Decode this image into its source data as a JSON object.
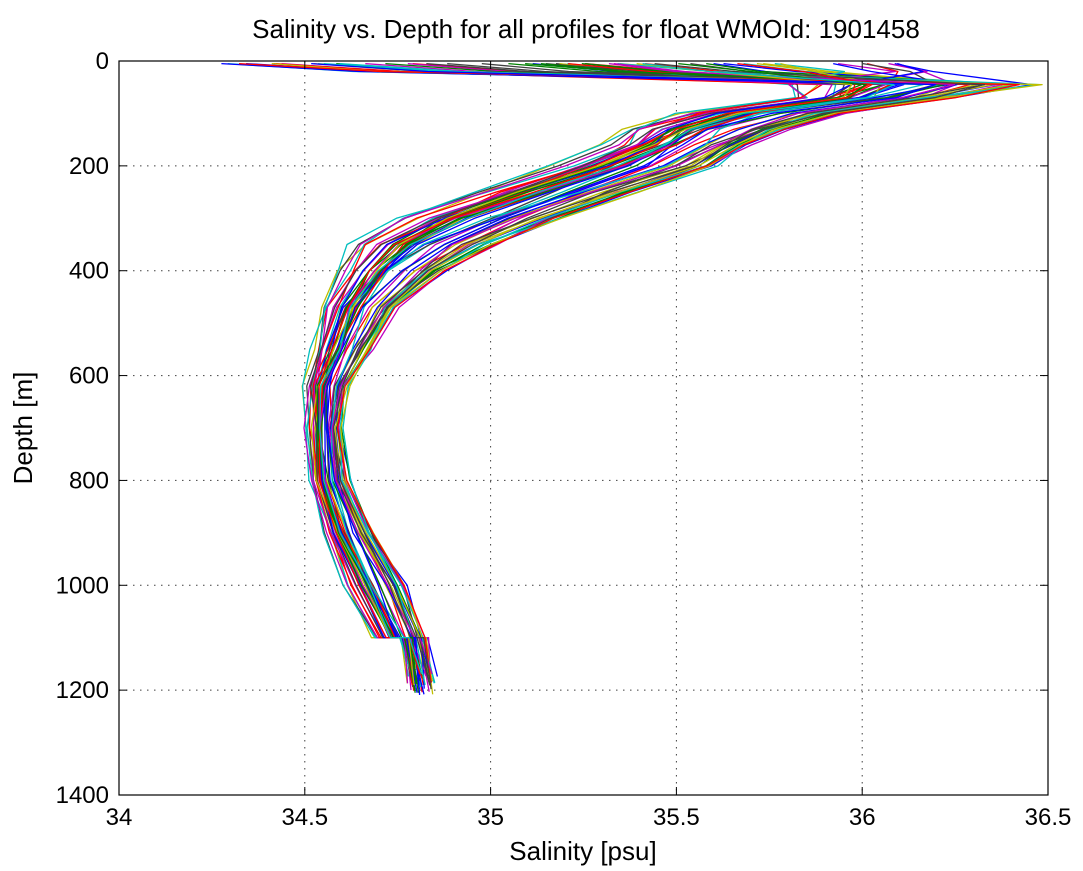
{
  "chart_data": {
    "type": "line",
    "title": "Salinity vs. Depth for all profiles for float WMOId: 1901458",
    "xlabel": "Salinity [psu]",
    "ylabel": "Depth [m]",
    "xlim": [
      34,
      36.5
    ],
    "ylim": [
      0,
      1400
    ],
    "y_reversed": true,
    "xticks": [
      34,
      34.5,
      35,
      35.5,
      36,
      36.5
    ],
    "xtick_labels": [
      "34",
      "34.5",
      "35",
      "35.5",
      "36",
      "36.5"
    ],
    "yticks": [
      0,
      200,
      400,
      600,
      800,
      1000,
      1200,
      1400
    ],
    "ytick_labels": [
      "0",
      "200",
      "400",
      "600",
      "800",
      "1000",
      "1200",
      "1400"
    ],
    "grid": true,
    "legend": "none",
    "color_cycle": [
      "#0000ff",
      "#008000",
      "#ff0000",
      "#00bfbf",
      "#bf00bf",
      "#bfbf00",
      "#404040"
    ],
    "profile_count": 60,
    "depth_levels": [
      5,
      20,
      45,
      70,
      100,
      130,
      160,
      200,
      250,
      300,
      350,
      400,
      470,
      550,
      620,
      700,
      800,
      900,
      1000,
      1100,
      1160,
      1210
    ],
    "mean_profile_salinity": [
      35.6,
      35.85,
      36.15,
      36.0,
      35.78,
      35.63,
      35.52,
      35.4,
      35.2,
      34.96,
      34.82,
      34.72,
      34.62,
      34.57,
      34.53,
      34.52,
      34.54,
      34.6,
      34.67,
      34.74,
      34.8,
      34.83
    ],
    "envelope_min": [
      34.25,
      34.6,
      35.8,
      35.8,
      35.5,
      35.35,
      35.3,
      35.15,
      34.95,
      34.75,
      34.62,
      34.58,
      34.54,
      34.52,
      34.5,
      34.5,
      34.51,
      34.55,
      34.6,
      34.68,
      34.75,
      34.78
    ],
    "envelope_max": [
      36.1,
      36.2,
      36.47,
      36.25,
      35.95,
      35.8,
      35.7,
      35.62,
      35.4,
      35.2,
      35.02,
      34.88,
      34.75,
      34.68,
      34.62,
      34.6,
      34.62,
      34.68,
      34.77,
      34.82,
      34.83,
      34.85
    ]
  }
}
